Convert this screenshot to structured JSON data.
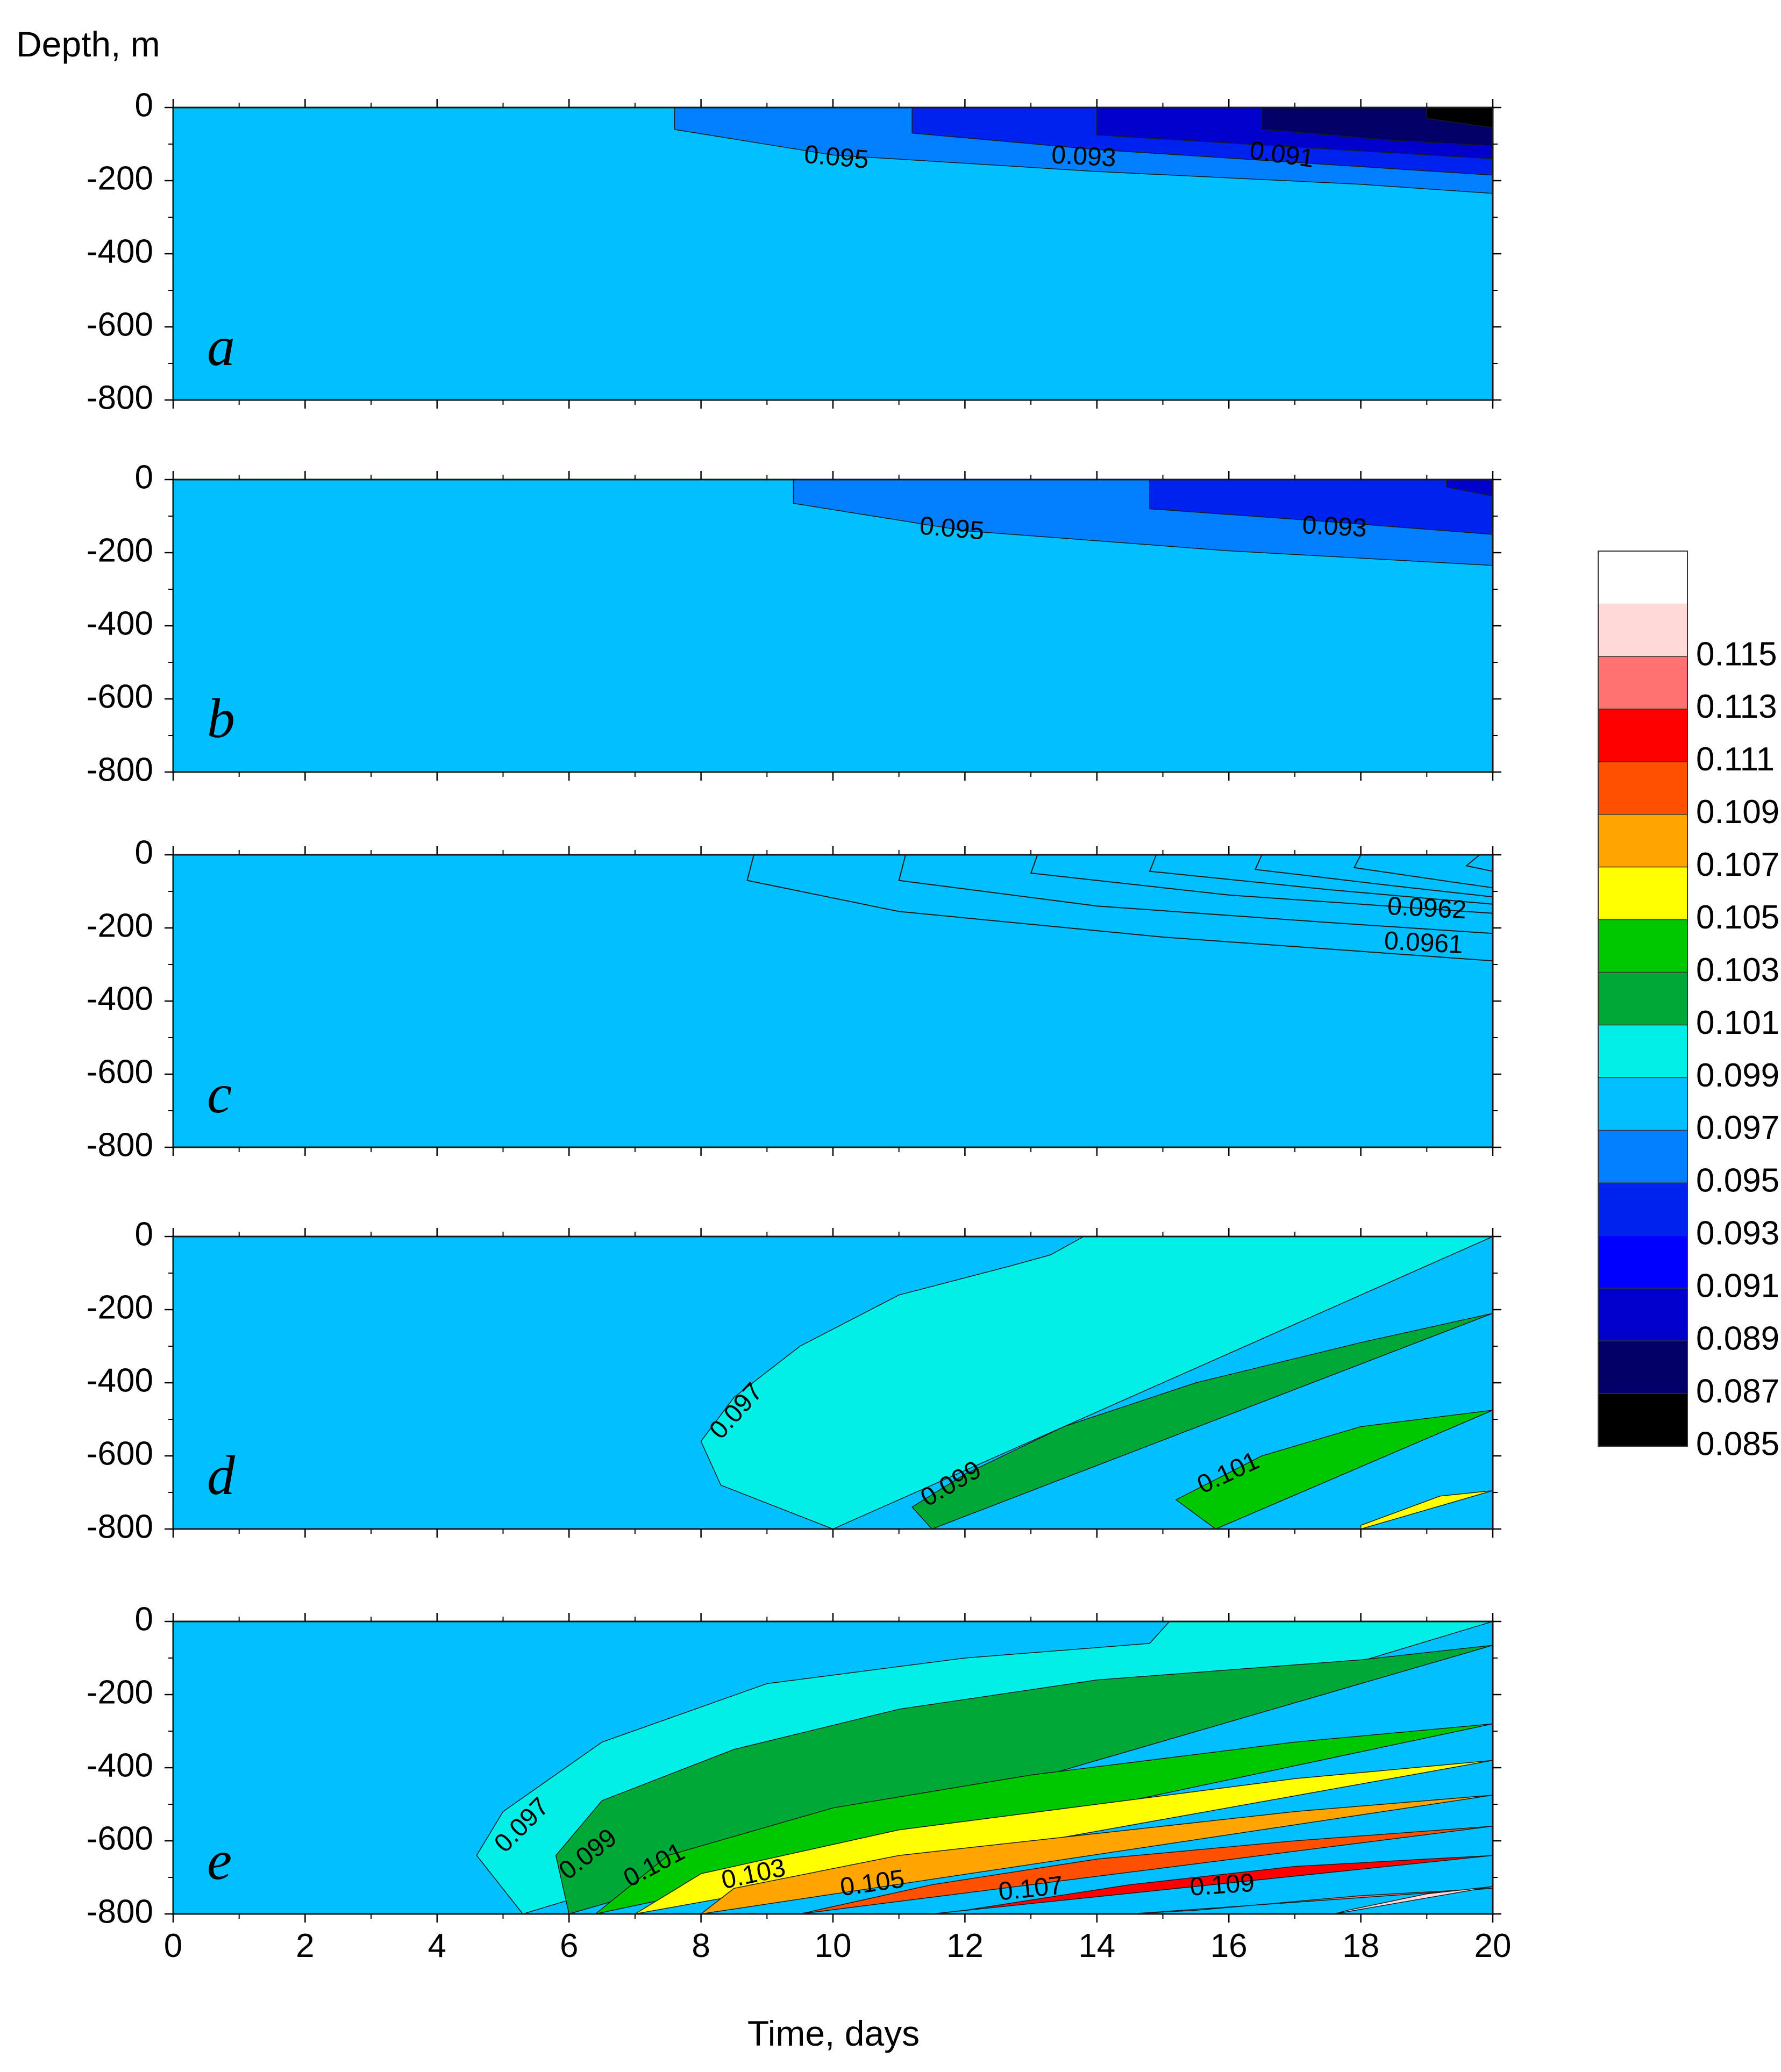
{
  "chart_data": {
    "type": "contour",
    "ylabel": "Depth, m",
    "xlabel": "Time, days",
    "xlim": [
      0,
      20
    ],
    "ylim": [
      -800,
      0
    ],
    "xticks": [
      0,
      2,
      4,
      6,
      8,
      10,
      12,
      14,
      16,
      18,
      20
    ],
    "yticks": [
      0,
      -200,
      -400,
      -600,
      -800
    ],
    "xtick_labels": [
      "0",
      "2",
      "4",
      "6",
      "8",
      "10",
      "12",
      "14",
      "16",
      "18",
      "20"
    ],
    "ytick_labels": [
      "0",
      "-200",
      "-400",
      "-600",
      "-800"
    ],
    "colorbar": {
      "levels": [
        0.085,
        0.087,
        0.089,
        0.091,
        0.093,
        0.095,
        0.097,
        0.099,
        0.101,
        0.103,
        0.105,
        0.107,
        0.109,
        0.111,
        0.113,
        0.115
      ],
      "labels": [
        "0.085",
        "0.087",
        "0.089",
        "0.091",
        "0.093",
        "0.095",
        "0.097",
        "0.099",
        "0.101",
        "0.103",
        "0.105",
        "0.107",
        "0.109",
        "0.111",
        "0.113",
        "0.115"
      ],
      "colors": [
        "#000000",
        "#000066",
        "#0000cc",
        "#0000ff",
        "#0022ee",
        "#0080ff",
        "#00c0ff",
        "#00f0e8",
        "#00a838",
        "#00c800",
        "#ffff00",
        "#ffa500",
        "#ff5000",
        "#ff0000",
        "#ff7070",
        "#ffd8d8",
        "#ffffff"
      ]
    },
    "panels": [
      {
        "letter": "a",
        "background": "#00c0ff",
        "bands": [
          {
            "color": "#0080ff",
            "top": [
              [
                7.6,
                0
              ],
              [
                20,
                0
              ]
            ],
            "bottom": [
              [
                7.6,
                -60
              ],
              [
                10,
                -130
              ],
              [
                14,
                -175
              ],
              [
                18,
                -210
              ],
              [
                20,
                -235
              ]
            ]
          },
          {
            "color": "#0022ee",
            "top": [
              [
                11.2,
                0
              ],
              [
                20,
                0
              ]
            ],
            "bottom": [
              [
                11.2,
                -70
              ],
              [
                14,
                -115
              ],
              [
                17,
                -150
              ],
              [
                20,
                -185
              ]
            ]
          },
          {
            "color": "#0000cc",
            "top": [
              [
                14,
                0
              ],
              [
                20,
                0
              ]
            ],
            "bottom": [
              [
                14,
                -75
              ],
              [
                17,
                -108
              ],
              [
                20,
                -140
              ]
            ]
          },
          {
            "color": "#000066",
            "top": [
              [
                16.5,
                0
              ],
              [
                20,
                0
              ]
            ],
            "bottom": [
              [
                16.5,
                -60
              ],
              [
                18.5,
                -90
              ],
              [
                20,
                -105
              ]
            ]
          },
          {
            "color": "#000000",
            "top": [
              [
                19,
                0
              ],
              [
                20,
                0
              ]
            ],
            "bottom": [
              [
                19,
                -30
              ],
              [
                20,
                -55
              ]
            ]
          }
        ],
        "labels": [
          {
            "text": "0.095",
            "x": 10.05,
            "y": -140,
            "angle": 5
          },
          {
            "text": "0.093",
            "x": 13.8,
            "y": -138,
            "angle": 3
          },
          {
            "text": "0.091",
            "x": 16.8,
            "y": -133,
            "angle": 8
          }
        ]
      },
      {
        "letter": "b",
        "background": "#00c0ff",
        "bands": [
          {
            "color": "#0080ff",
            "top": [
              [
                9.4,
                0
              ],
              [
                20,
                0
              ]
            ],
            "bottom": [
              [
                9.4,
                -65
              ],
              [
                12,
                -140
              ],
              [
                16,
                -195
              ],
              [
                20,
                -235
              ]
            ]
          },
          {
            "color": "#0022ee",
            "top": [
              [
                14.8,
                0
              ],
              [
                20,
                0
              ]
            ],
            "bottom": [
              [
                14.8,
                -80
              ],
              [
                17.5,
                -115
              ],
              [
                20,
                -150
              ]
            ]
          },
          {
            "color": "#0000cc",
            "top": [
              [
                19.3,
                0
              ],
              [
                20,
                0
              ]
            ],
            "bottom": [
              [
                19.3,
                -20
              ],
              [
                20,
                -45
              ]
            ]
          }
        ],
        "labels": [
          {
            "text": "0.095",
            "x": 11.8,
            "y": -138,
            "angle": 5
          },
          {
            "text": "0.093",
            "x": 17.6,
            "y": -133,
            "angle": 3
          }
        ]
      },
      {
        "letter": "c",
        "background": "#00c0ff",
        "bands": [],
        "lines": [
          [
            [
              8.8,
              0
            ],
            [
              8.7,
              -70
            ],
            [
              11,
              -155
            ],
            [
              15,
              -225
            ],
            [
              20,
              -290
            ]
          ],
          [
            [
              11.1,
              0
            ],
            [
              11,
              -70
            ],
            [
              14,
              -140
            ],
            [
              17.5,
              -185
            ],
            [
              20,
              -215
            ]
          ],
          [
            [
              13.1,
              0
            ],
            [
              13,
              -50
            ],
            [
              16,
              -110
            ],
            [
              20,
              -160
            ]
          ],
          [
            [
              14.9,
              0
            ],
            [
              14.8,
              -45
            ],
            [
              17.5,
              -95
            ],
            [
              20,
              -135
            ]
          ],
          [
            [
              16.5,
              0
            ],
            [
              16.4,
              -40
            ],
            [
              18.5,
              -85
            ],
            [
              20,
              -115
            ]
          ],
          [
            [
              18,
              0
            ],
            [
              17.9,
              -35
            ],
            [
              19.3,
              -72
            ],
            [
              20,
              -90
            ]
          ],
          [
            [
              19.8,
              0
            ],
            [
              19.6,
              -30
            ],
            [
              20,
              -45
            ]
          ]
        ],
        "labels": [
          {
            "text": "0.0962",
            "x": 19.0,
            "y": -150,
            "angle": 3
          },
          {
            "text": "0.0961",
            "x": 18.95,
            "y": -245,
            "angle": 3
          }
        ]
      },
      {
        "letter": "d",
        "background": "#00c0ff",
        "bands": [
          {
            "color": "#00f0e8",
            "top": [
              [
                13.8,
                0
              ],
              [
                20,
                0
              ]
            ],
            "bottom": [
              [
                13.8,
                0
              ],
              [
                13.3,
                -50
              ],
              [
                12.7,
                -80
              ],
              [
                11,
                -160
              ],
              [
                9.5,
                -300
              ],
              [
                8.5,
                -440
              ],
              [
                8,
                -560
              ],
              [
                8.3,
                -680
              ],
              [
                10,
                -800
              ]
            ]
          },
          {
            "color": "#00a838",
            "top": [
              [
                20,
                -210
              ],
              [
                18,
                -290
              ],
              [
                15.5,
                -400
              ],
              [
                13.5,
                -520
              ],
              [
                12,
                -650
              ],
              [
                11.2,
                -740
              ],
              [
                11.5,
                -800
              ]
            ],
            "bottom": [
              [
                11.5,
                -800
              ],
              [
                20,
                -800
              ]
            ]
          },
          {
            "color": "#00c800",
            "top": [
              [
                20,
                -475
              ],
              [
                18,
                -520
              ],
              [
                16.5,
                -600
              ],
              [
                15.2,
                -720
              ],
              [
                15.8,
                -800
              ]
            ],
            "bottom": [
              [
                15.8,
                -800
              ],
              [
                20,
                -800
              ]
            ]
          },
          {
            "color": "#ffff00",
            "top": [
              [
                20,
                -695
              ],
              [
                19.2,
                -710
              ],
              [
                18,
                -790
              ],
              [
                18,
                -800
              ]
            ],
            "bottom": [
              [
                18,
                -800
              ],
              [
                20,
                -800
              ]
            ]
          }
        ],
        "labels": [
          {
            "text": "0.097",
            "x": 8.55,
            "y": -480,
            "angle": -48
          },
          {
            "text": "0.099",
            "x": 11.8,
            "y": -680,
            "angle": -30
          },
          {
            "text": "0.101",
            "x": 16.0,
            "y": -650,
            "angle": -25
          }
        ]
      },
      {
        "letter": "e",
        "background": "#00c0ff",
        "bands": [
          {
            "color": "#00f0e8",
            "top": [
              [
                15.1,
                0
              ],
              [
                20,
                0
              ]
            ],
            "bottom": [
              [
                15.1,
                0
              ],
              [
                14.8,
                -60
              ],
              [
                12,
                -100
              ],
              [
                9,
                -170
              ],
              [
                6.5,
                -330
              ],
              [
                5,
                -520
              ],
              [
                4.6,
                -640
              ],
              [
                5.3,
                -800
              ]
            ]
          },
          {
            "color": "#00a838",
            "top": [
              [
                20,
                -65
              ],
              [
                18,
                -105
              ],
              [
                14,
                -160
              ],
              [
                11,
                -240
              ],
              [
                8.5,
                -350
              ],
              [
                6.5,
                -490
              ],
              [
                5.8,
                -640
              ],
              [
                6,
                -800
              ]
            ],
            "bottom": [
              [
                6,
                -800
              ],
              [
                20,
                -800
              ]
            ]
          },
          {
            "color": "#00c800",
            "top": [
              [
                20,
                -280
              ],
              [
                17,
                -330
              ],
              [
                13,
                -420
              ],
              [
                10,
                -510
              ],
              [
                7.5,
                -640
              ],
              [
                6.4,
                -800
              ]
            ],
            "bottom": [
              [
                6.4,
                -800
              ],
              [
                20,
                -800
              ]
            ]
          },
          {
            "color": "#ffff00",
            "top": [
              [
                20,
                -380
              ],
              [
                17,
                -430
              ],
              [
                14,
                -500
              ],
              [
                11,
                -570
              ],
              [
                8,
                -690
              ],
              [
                7,
                -800
              ]
            ],
            "bottom": [
              [
                7,
                -800
              ],
              [
                20,
                -800
              ]
            ]
          },
          {
            "color": "#ffa500",
            "top": [
              [
                20,
                -475
              ],
              [
                17,
                -520
              ],
              [
                14,
                -580
              ],
              [
                11,
                -640
              ],
              [
                8.5,
                -730
              ],
              [
                8,
                -800
              ]
            ],
            "bottom": [
              [
                8,
                -800
              ],
              [
                20,
                -800
              ]
            ]
          },
          {
            "color": "#ff5000",
            "top": [
              [
                20,
                -560
              ],
              [
                17,
                -600
              ],
              [
                14,
                -650
              ],
              [
                11.5,
                -720
              ],
              [
                9.5,
                -800
              ]
            ],
            "bottom": [
              [
                9.5,
                -800
              ],
              [
                20,
                -800
              ]
            ]
          },
          {
            "color": "#ff0000",
            "top": [
              [
                20,
                -640
              ],
              [
                17,
                -670
              ],
              [
                14.5,
                -720
              ],
              [
                12,
                -790
              ],
              [
                11.5,
                -800
              ]
            ],
            "bottom": [
              [
                11.5,
                -800
              ],
              [
                20,
                -800
              ]
            ]
          },
          {
            "color": "#ff7070",
            "top": [
              [
                20,
                -730
              ],
              [
                18,
                -750
              ],
              [
                15.5,
                -790
              ],
              [
                14.5,
                -800
              ]
            ],
            "bottom": [
              [
                14.5,
                -800
              ],
              [
                20,
                -800
              ]
            ]
          },
          {
            "color": "#ffd8d8",
            "top": [
              [
                20,
                -725
              ],
              [
                19,
                -745
              ],
              [
                17.8,
                -790
              ],
              [
                17.6,
                -800
              ]
            ],
            "bottom": [
              [
                17.6,
                -800
              ],
              [
                20,
                -800
              ]
            ]
          }
        ],
        "labels": [
          {
            "text": "0.097",
            "x": 5.3,
            "y": -560,
            "angle": -45
          },
          {
            "text": "0.099",
            "x": 6.3,
            "y": -640,
            "angle": -38
          },
          {
            "text": "0.101",
            "x": 7.3,
            "y": -670,
            "angle": -28
          },
          {
            "text": "0.103",
            "x": 8.8,
            "y": -695,
            "angle": -12
          },
          {
            "text": "0.105",
            "x": 10.6,
            "y": -720,
            "angle": -8
          },
          {
            "text": "0.107",
            "x": 13.0,
            "y": -735,
            "angle": -6
          },
          {
            "text": "0.109",
            "x": 15.9,
            "y": -725,
            "angle": -4
          }
        ]
      }
    ]
  }
}
